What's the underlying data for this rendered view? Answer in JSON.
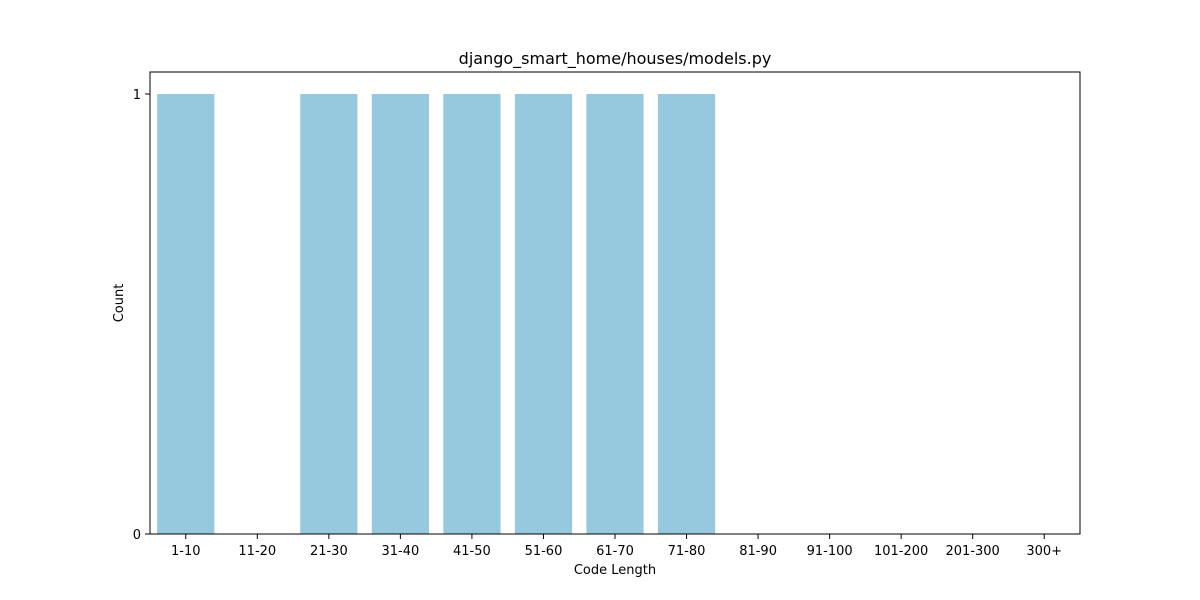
{
  "chart_data": {
    "type": "bar",
    "title": "django_smart_home/houses/models.py",
    "xlabel": "Code Length",
    "ylabel": "Count",
    "categories": [
      "1-10",
      "11-20",
      "21-30",
      "31-40",
      "41-50",
      "51-60",
      "61-70",
      "71-80",
      "81-90",
      "91-100",
      "101-200",
      "201-300",
      "300+"
    ],
    "values": [
      1,
      0,
      1,
      1,
      1,
      1,
      1,
      1,
      0,
      0,
      0,
      0,
      0
    ],
    "ylim": [
      0,
      1
    ],
    "yticks": [
      "0",
      "1"
    ],
    "grid": false,
    "legend": "none",
    "bar_color": "#96c9de"
  }
}
